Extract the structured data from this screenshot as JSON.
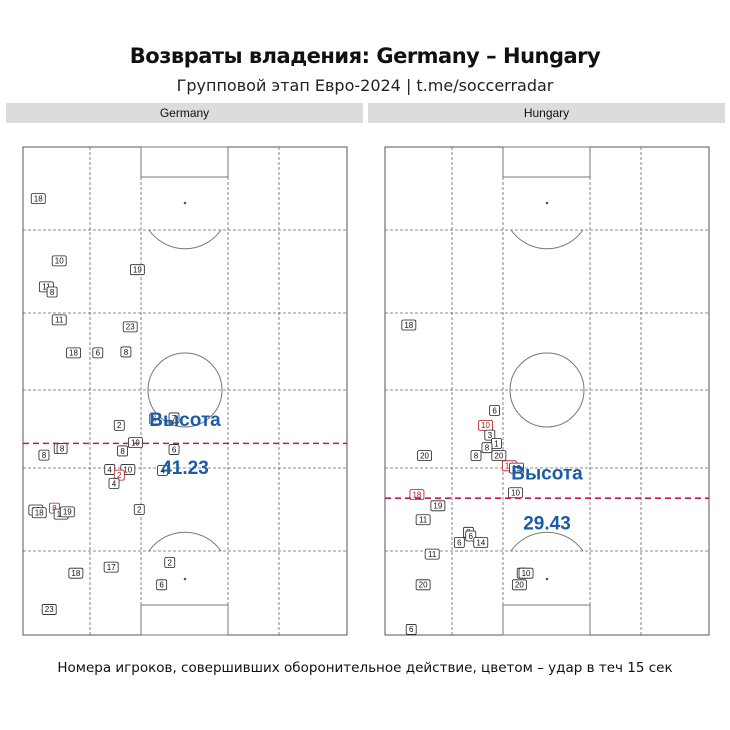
{
  "title": "Возвраты владения: Germany – Hungary",
  "subtitle": "Групповой этап Евро-2024 | t.me/soccerradar",
  "footer": "Номера игроков, совершивших оборонительное действие, цветом – удар в теч 15 сек",
  "colors": {
    "header_bg": "#dcdcdc",
    "height_line": "#c2185b",
    "height_text": "#1a5ca8",
    "shot_marker": "#b0181b",
    "normal_marker": "#111111"
  },
  "chart_data": [
    {
      "type": "scatter",
      "team": "Germany",
      "height_label": "Высота",
      "height_value": "41.23",
      "height_line_y": 41.23,
      "xlim": [
        0,
        68
      ],
      "ylim": [
        0,
        105
      ],
      "points": [
        {
          "label": "18",
          "x": 3.2,
          "y": 93.9,
          "shot": false
        },
        {
          "label": "10",
          "x": 7.6,
          "y": 80.5,
          "shot": false
        },
        {
          "label": "19",
          "x": 24.0,
          "y": 78.6,
          "shot": false
        },
        {
          "label": "11",
          "x": 4.9,
          "y": 74.9,
          "shot": false
        },
        {
          "label": "8",
          "x": 6.1,
          "y": 73.8,
          "shot": false
        },
        {
          "label": "11",
          "x": 7.6,
          "y": 67.8,
          "shot": false
        },
        {
          "label": "23",
          "x": 22.5,
          "y": 66.3,
          "shot": false
        },
        {
          "label": "18",
          "x": 10.6,
          "y": 60.7,
          "shot": false
        },
        {
          "label": "6",
          "x": 15.7,
          "y": 60.7,
          "shot": false
        },
        {
          "label": "8",
          "x": 21.6,
          "y": 60.9,
          "shot": false
        },
        {
          "label": "6",
          "x": 27.6,
          "y": 46.5,
          "shot": true
        },
        {
          "label": "7",
          "x": 31.7,
          "y": 46.7,
          "shot": false
        },
        {
          "label": "2",
          "x": 20.2,
          "y": 45.1,
          "shot": false
        },
        {
          "label": "19",
          "x": 23.6,
          "y": 41.4,
          "shot": false
        },
        {
          "label": "8",
          "x": 7.6,
          "y": 40.1,
          "shot": false
        },
        {
          "label": "8",
          "x": 8.2,
          "y": 40.1,
          "shot": false
        },
        {
          "label": "8",
          "x": 20.9,
          "y": 39.6,
          "shot": false
        },
        {
          "label": "6",
          "x": 31.7,
          "y": 39.9,
          "shot": false
        },
        {
          "label": "8",
          "x": 4.4,
          "y": 38.7,
          "shot": false
        },
        {
          "label": "10",
          "x": 22.0,
          "y": 35.6,
          "shot": false
        },
        {
          "label": "4",
          "x": 18.2,
          "y": 35.6,
          "shot": false
        },
        {
          "label": "4",
          "x": 29.3,
          "y": 35.4,
          "shot": false
        },
        {
          "label": "2",
          "x": 20.2,
          "y": 34.4,
          "shot": true
        },
        {
          "label": "4",
          "x": 19.1,
          "y": 32.6,
          "shot": false
        },
        {
          "label": "10",
          "x": 2.7,
          "y": 26.9,
          "shot": false
        },
        {
          "label": "18",
          "x": 3.4,
          "y": 26.3,
          "shot": false
        },
        {
          "label": "8",
          "x": 6.6,
          "y": 27.3,
          "shot": true
        },
        {
          "label": "16",
          "x": 8.0,
          "y": 26.0,
          "shot": false
        },
        {
          "label": "19",
          "x": 9.3,
          "y": 26.5,
          "shot": false
        },
        {
          "label": "2",
          "x": 24.4,
          "y": 27.0,
          "shot": false
        },
        {
          "label": "2",
          "x": 30.8,
          "y": 15.6,
          "shot": false
        },
        {
          "label": "17",
          "x": 18.5,
          "y": 14.6,
          "shot": false
        },
        {
          "label": "18",
          "x": 11.1,
          "y": 13.3,
          "shot": false
        },
        {
          "label": "6",
          "x": 29.1,
          "y": 10.8,
          "shot": false
        },
        {
          "label": "23",
          "x": 5.5,
          "y": 5.5,
          "shot": false
        }
      ]
    },
    {
      "type": "scatter",
      "team": "Hungary",
      "height_label": "Высота",
      "height_value": "29.43",
      "height_line_y": 29.43,
      "xlim": [
        0,
        68
      ],
      "ylim": [
        0,
        105
      ],
      "points": [
        {
          "label": "18",
          "x": 5.0,
          "y": 66.7,
          "shot": false
        },
        {
          "label": "6",
          "x": 23.0,
          "y": 48.3,
          "shot": false
        },
        {
          "label": "10",
          "x": 21.1,
          "y": 45.1,
          "shot": true
        },
        {
          "label": "3",
          "x": 22.0,
          "y": 43.0,
          "shot": false
        },
        {
          "label": "1",
          "x": 23.4,
          "y": 41.2,
          "shot": false
        },
        {
          "label": "8",
          "x": 21.4,
          "y": 40.3,
          "shot": false
        },
        {
          "label": "20",
          "x": 8.3,
          "y": 38.6,
          "shot": false
        },
        {
          "label": "8",
          "x": 19.1,
          "y": 38.6,
          "shot": false
        },
        {
          "label": "20",
          "x": 23.9,
          "y": 38.6,
          "shot": false
        },
        {
          "label": "14",
          "x": 26.1,
          "y": 36.4,
          "shot": true
        },
        {
          "label": "19",
          "x": 27.6,
          "y": 35.9,
          "shot": false
        },
        {
          "label": "10",
          "x": 27.4,
          "y": 30.6,
          "shot": false
        },
        {
          "label": "18",
          "x": 6.7,
          "y": 30.2,
          "shot": true
        },
        {
          "label": "19",
          "x": 11.1,
          "y": 27.8,
          "shot": false
        },
        {
          "label": "11",
          "x": 8.0,
          "y": 24.8,
          "shot": false
        },
        {
          "label": "8",
          "x": 17.5,
          "y": 22.1,
          "shot": false
        },
        {
          "label": "6",
          "x": 18.0,
          "y": 21.3,
          "shot": false
        },
        {
          "label": "6",
          "x": 15.6,
          "y": 19.9,
          "shot": false
        },
        {
          "label": "14",
          "x": 20.1,
          "y": 19.9,
          "shot": false
        },
        {
          "label": "11",
          "x": 9.9,
          "y": 17.4,
          "shot": false
        },
        {
          "label": "20",
          "x": 8.0,
          "y": 10.8,
          "shot": false
        },
        {
          "label": "1",
          "x": 28.8,
          "y": 13.3,
          "shot": false
        },
        {
          "label": "10",
          "x": 29.6,
          "y": 13.3,
          "shot": false
        },
        {
          "label": "20",
          "x": 28.2,
          "y": 10.8,
          "shot": false
        },
        {
          "label": "6",
          "x": 5.5,
          "y": 1.2,
          "shot": false
        }
      ]
    }
  ]
}
